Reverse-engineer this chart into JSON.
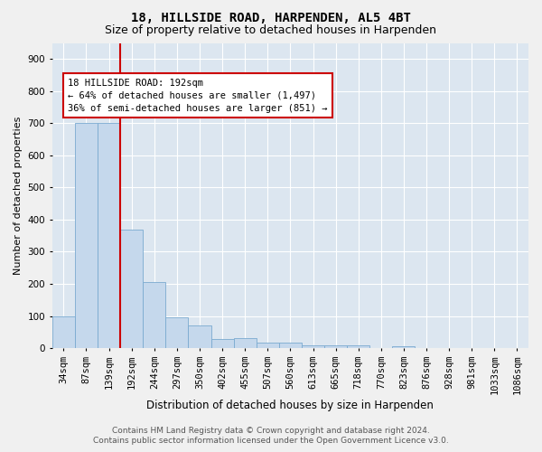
{
  "title1": "18, HILLSIDE ROAD, HARPENDEN, AL5 4BT",
  "title2": "Size of property relative to detached houses in Harpenden",
  "xlabel": "Distribution of detached houses by size in Harpenden",
  "ylabel": "Number of detached properties",
  "bar_color": "#c5d8ec",
  "bar_edge_color": "#7aaad0",
  "categories": [
    "34sqm",
    "87sqm",
    "139sqm",
    "192sqm",
    "244sqm",
    "297sqm",
    "350sqm",
    "402sqm",
    "455sqm",
    "507sqm",
    "560sqm",
    "613sqm",
    "665sqm",
    "718sqm",
    "770sqm",
    "823sqm",
    "876sqm",
    "928sqm",
    "981sqm",
    "1033sqm",
    "1086sqm"
  ],
  "values": [
    100,
    700,
    700,
    370,
    205,
    95,
    70,
    28,
    30,
    18,
    18,
    10,
    8,
    8,
    0,
    5,
    0,
    0,
    0,
    0,
    0
  ],
  "redline_index": 3,
  "annotation_lines": [
    "18 HILLSIDE ROAD: 192sqm",
    "← 64% of detached houses are smaller (1,497)",
    "36% of semi-detached houses are larger (851) →"
  ],
  "annotation_box_color": "#ffffff",
  "annotation_box_edge_color": "#cc0000",
  "redline_color": "#cc0000",
  "footer1": "Contains HM Land Registry data © Crown copyright and database right 2024.",
  "footer2": "Contains public sector information licensed under the Open Government Licence v3.0.",
  "ylim": [
    0,
    950
  ],
  "yticks": [
    0,
    100,
    200,
    300,
    400,
    500,
    600,
    700,
    800,
    900
  ],
  "bg_color": "#dce6f0",
  "grid_color": "#ffffff",
  "fig_bg_color": "#f0f0f0",
  "title1_fontsize": 10,
  "title2_fontsize": 9,
  "xlabel_fontsize": 8.5,
  "ylabel_fontsize": 8,
  "tick_fontsize": 7.5,
  "annotation_fontsize": 7.5,
  "footer_fontsize": 6.5
}
